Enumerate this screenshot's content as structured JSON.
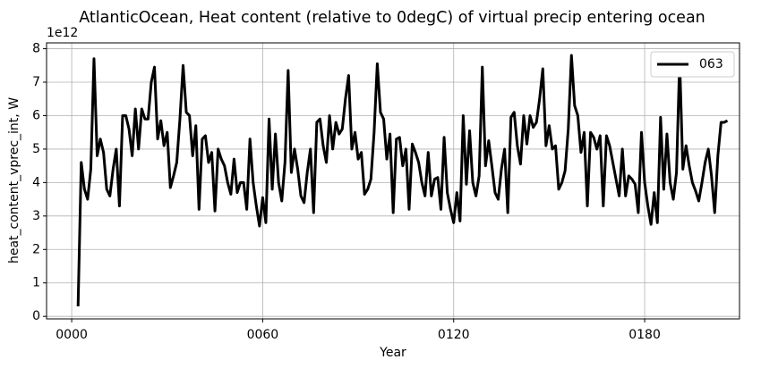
{
  "chart_data": {
    "type": "line",
    "title": "AtlanticOcean, Heat content (relative to 0degC) of virtual precip entering ocean",
    "xlabel": "Year",
    "ylabel": "heat_content_vprec_int, W",
    "y_offset_label": "1e12",
    "grid": true,
    "legend": "upper right",
    "xlim": [
      -7.9,
      209.8
    ],
    "ylim": [
      -0.075,
      8.175
    ],
    "xticks": [
      {
        "value": 0,
        "label": "0000"
      },
      {
        "value": 60,
        "label": "0060"
      },
      {
        "value": 120,
        "label": "0120"
      },
      {
        "value": 180,
        "label": "0180"
      }
    ],
    "yticks": [
      0,
      1,
      2,
      3,
      4,
      5,
      6,
      7,
      8
    ],
    "x": [
      2,
      3,
      4,
      5,
      6,
      7,
      8,
      9,
      10,
      11,
      12,
      13,
      14,
      15,
      16,
      17,
      18,
      19,
      20,
      21,
      22,
      23,
      24,
      25,
      26,
      27,
      28,
      29,
      30,
      31,
      32,
      33,
      34,
      35,
      36,
      37,
      38,
      39,
      40,
      41,
      42,
      43,
      44,
      45,
      46,
      47,
      48,
      49,
      50,
      51,
      52,
      53,
      54,
      55,
      56,
      57,
      58,
      59,
      60,
      61,
      62,
      63,
      64,
      65,
      66,
      67,
      68,
      69,
      70,
      71,
      72,
      73,
      74,
      75,
      76,
      77,
      78,
      79,
      80,
      81,
      82,
      83,
      84,
      85,
      86,
      87,
      88,
      89,
      90,
      91,
      92,
      93,
      94,
      95,
      96,
      97,
      98,
      99,
      100,
      101,
      102,
      103,
      104,
      105,
      106,
      107,
      108,
      109,
      110,
      111,
      112,
      113,
      114,
      115,
      116,
      117,
      118,
      119,
      120,
      121,
      122,
      123,
      124,
      125,
      126,
      127,
      128,
      129,
      130,
      131,
      132,
      133,
      134,
      135,
      136,
      137,
      138,
      139,
      140,
      141,
      142,
      143,
      144,
      145,
      146,
      147,
      148,
      149,
      150,
      151,
      152,
      153,
      154,
      155,
      156,
      157,
      158,
      159,
      160,
      161,
      162,
      163,
      164,
      165,
      166,
      167,
      168,
      169,
      170,
      171,
      172,
      173,
      174,
      175,
      176,
      177,
      178,
      179,
      180,
      181,
      182,
      183,
      184,
      185,
      186,
      187,
      188,
      189,
      190,
      191,
      192,
      193,
      194,
      195,
      196,
      197,
      198,
      199,
      200,
      201,
      202,
      203,
      204,
      205,
      206
    ],
    "series": [
      {
        "name": "063",
        "color": "#000000",
        "values": [
          0.3,
          4.6,
          3.8,
          3.5,
          4.4,
          7.7,
          4.8,
          5.3,
          4.9,
          3.8,
          3.6,
          4.4,
          5.0,
          3.3,
          6.0,
          6.0,
          5.6,
          4.8,
          6.2,
          5.0,
          6.2,
          5.9,
          5.9,
          7.0,
          7.45,
          5.3,
          5.85,
          5.1,
          5.5,
          3.85,
          4.2,
          4.6,
          5.9,
          7.5,
          6.1,
          6.0,
          4.8,
          5.7,
          3.2,
          5.3,
          5.4,
          4.6,
          4.9,
          3.15,
          5.0,
          4.7,
          4.5,
          4.0,
          3.65,
          4.7,
          3.7,
          4.0,
          4.0,
          3.2,
          5.3,
          4.0,
          3.3,
          2.7,
          3.55,
          2.8,
          5.9,
          3.8,
          5.45,
          4.0,
          3.45,
          4.6,
          7.35,
          4.3,
          5.0,
          4.4,
          3.6,
          3.4,
          4.3,
          5.0,
          3.1,
          5.8,
          5.9,
          5.1,
          4.6,
          6.0,
          5.0,
          5.8,
          5.45,
          5.6,
          6.5,
          7.2,
          5.0,
          5.5,
          4.7,
          4.9,
          3.65,
          3.8,
          4.1,
          5.5,
          7.55,
          6.1,
          5.9,
          4.7,
          5.45,
          3.1,
          5.3,
          5.35,
          4.5,
          5.0,
          3.2,
          5.15,
          4.9,
          4.6,
          4.0,
          3.6,
          4.9,
          3.6,
          4.1,
          4.15,
          3.2,
          5.35,
          3.7,
          3.2,
          2.8,
          3.7,
          2.85,
          6.0,
          3.95,
          5.55,
          4.0,
          3.6,
          4.2,
          7.45,
          4.5,
          5.25,
          4.5,
          3.7,
          3.5,
          4.4,
          5.0,
          3.1,
          5.95,
          6.1,
          5.1,
          4.55,
          6.0,
          5.15,
          6.0,
          5.65,
          5.8,
          6.5,
          7.4,
          5.1,
          5.7,
          5.0,
          5.1,
          3.8,
          4.0,
          4.35,
          5.6,
          7.8,
          6.3,
          6.0,
          4.9,
          5.5,
          3.3,
          5.5,
          5.35,
          5.0,
          5.4,
          3.3,
          5.4,
          5.1,
          4.6,
          4.1,
          3.6,
          5.0,
          3.6,
          4.2,
          4.1,
          3.95,
          3.1,
          5.5,
          4.0,
          3.3,
          2.75,
          3.7,
          2.8,
          5.95,
          3.8,
          5.45,
          4.0,
          3.5,
          4.3,
          7.65,
          4.4,
          5.1,
          4.5,
          4.0,
          3.75,
          3.45,
          4.0,
          4.6,
          5.0,
          4.2,
          3.1,
          4.8,
          5.8,
          5.8,
          5.85
        ]
      }
    ]
  }
}
